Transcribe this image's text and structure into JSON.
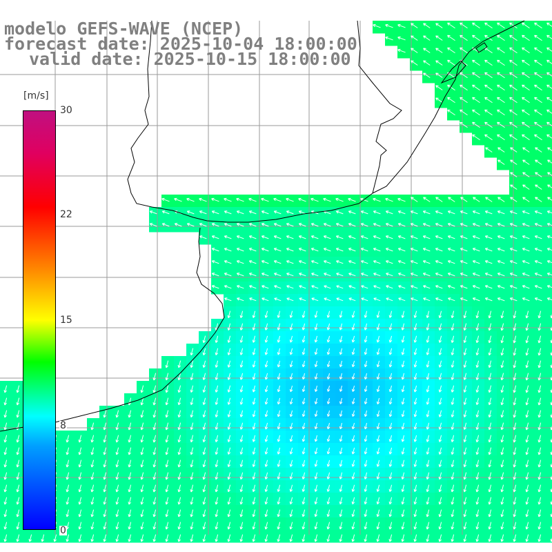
{
  "header": {
    "model": "modelo GEFS-WAVE (NCEP)",
    "forecast": "forecast date: 2025-10-04 18:00:00",
    "valid": "valid date: 2025-10-15 18:00:00"
  },
  "colorbar": {
    "unit": "[m/s]",
    "min": 0,
    "max": 30,
    "ticks": [
      "30",
      "22",
      "15",
      "8",
      "0"
    ],
    "colors": [
      "#0000ff",
      "#00a0ff",
      "#00ffff",
      "#00ff00",
      "#ffff00",
      "#ff8000",
      "#ff0000",
      "#c01080"
    ]
  },
  "field": {
    "variable": "wind speed and direction",
    "sea_color_low": "#0022ff",
    "sea_color_high": "#00ffff",
    "land_color": "#ffffff",
    "arrow_color": "#ffffff",
    "prevailing_direction": "south-easterly / easterly flow"
  }
}
